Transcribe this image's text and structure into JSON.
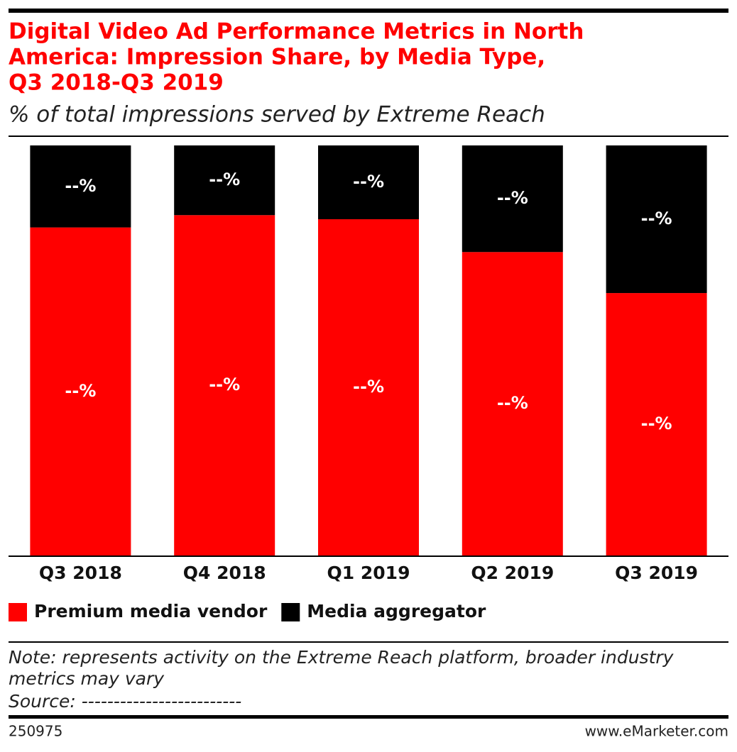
{
  "chart_data": {
    "type": "stacked-bar",
    "title": [
      "Digital Video Ad Performance Metrics in North",
      "America: Impression Share, by Media Type,",
      "Q3 2018-Q3 2019"
    ],
    "subtitle": "% of total impressions served by Extreme Reach",
    "categories": [
      "Q3 2018",
      "Q4 2018",
      "Q1 2019",
      "Q2 2019",
      "Q3 2019"
    ],
    "series": [
      {
        "name": "Premium media vendor",
        "color": "#ff0000",
        "values": [
          80,
          83,
          82,
          74,
          64
        ],
        "value_labels": [
          "--%",
          "--%",
          "--%",
          "--%",
          "--%"
        ]
      },
      {
        "name": "Media aggregator",
        "color": "#000000",
        "values": [
          20,
          17,
          18,
          26,
          36
        ],
        "value_labels": [
          "--%",
          "--%",
          "--%",
          "--%",
          "--%"
        ]
      }
    ],
    "ylim": [
      0,
      100
    ],
    "note": [
      "Note: represents activity on the Extreme Reach platform, broader industry",
      "metrics may vary"
    ],
    "source": "Source: -------------------------",
    "chart_id": "250975",
    "website": "www.eMarketer.com"
  }
}
